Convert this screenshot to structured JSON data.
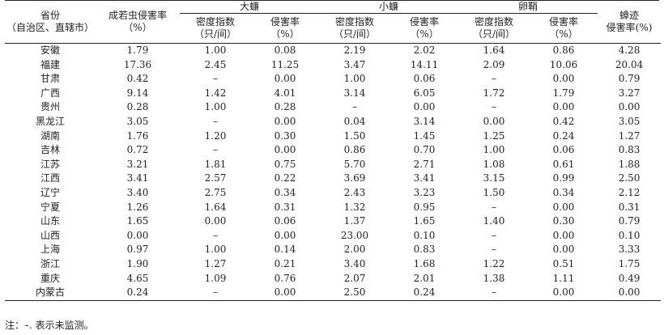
{
  "header": {
    "province": "省份\n（自治区、直辖市）",
    "province_line1": "省份",
    "province_line2": "（自治区、直辖市）",
    "adult_line1": "成若虫侵害率",
    "adult_line2": "（%）",
    "group_large": "大蠊",
    "group_small": "小蠊",
    "group_ootheca": "卵鞘",
    "density_line1": "密度指数",
    "density_line2": "（只/间）",
    "rate_line1": "侵害率",
    "rate_line2": "（%）",
    "trace_line1": "蟑迹",
    "trace_line2": "侵害率(%)"
  },
  "rows": [
    [
      "安徽",
      "1.79",
      "1.00",
      "0.08",
      "2.19",
      "2.02",
      "1.64",
      "0.86",
      "4.28"
    ],
    [
      "福建",
      "17.36",
      "2.45",
      "11.25",
      "3.47",
      "14.11",
      "2.09",
      "10.06",
      "20.04"
    ],
    [
      "甘肃",
      "0.42",
      "–",
      "0.00",
      "1.00",
      "0.06",
      "–",
      "0.00",
      "0.79"
    ],
    [
      "广西",
      "9.14",
      "1.42",
      "4.01",
      "3.14",
      "6.05",
      "1.72",
      "1.79",
      "3.27"
    ],
    [
      "贵州",
      "0.28",
      "1.00",
      "0.28",
      "–",
      "0.00",
      "–",
      "0.00",
      "0.00"
    ],
    [
      "黑龙江",
      "3.05",
      "–",
      "0.00",
      "0.04",
      "3.14",
      "0.00",
      "0.42",
      "3.05"
    ],
    [
      "湖南",
      "1.76",
      "1.20",
      "0.30",
      "1.50",
      "1.45",
      "1.25",
      "0.24",
      "1.27"
    ],
    [
      "吉林",
      "0.72",
      "–",
      "0.00",
      "0.86",
      "0.70",
      "1.00",
      "0.06",
      "0.83"
    ],
    [
      "江苏",
      "3.21",
      "1.81",
      "0.75",
      "5.70",
      "2.71",
      "1.08",
      "0.61",
      "1.88"
    ],
    [
      "江西",
      "3.41",
      "2.57",
      "0.22",
      "3.69",
      "3.41",
      "3.15",
      "0.99",
      "2.50"
    ],
    [
      "辽宁",
      "3.40",
      "2.75",
      "0.34",
      "2.43",
      "3.23",
      "1.50",
      "0.34",
      "2.12"
    ],
    [
      "宁夏",
      "1.26",
      "1.64",
      "0.31",
      "1.32",
      "0.95",
      "–",
      "0.00",
      "0.31"
    ],
    [
      "山东",
      "1.65",
      "0.00",
      "0.06",
      "1.37",
      "1.65",
      "1.40",
      "0.30",
      "0.79"
    ],
    [
      "山西",
      "0.00",
      "–",
      "0.00",
      "23.00",
      "0.10",
      "–",
      "0.00",
      "0.10"
    ],
    [
      "上海",
      "0.97",
      "1.00",
      "0.14",
      "2.00",
      "0.83",
      "–",
      "0.00",
      "3.33"
    ],
    [
      "浙江",
      "1.90",
      "1.27",
      "0.21",
      "3.40",
      "1.68",
      "1.22",
      "0.51",
      "1.75"
    ],
    [
      "重庆",
      "4.65",
      "1.09",
      "0.76",
      "2.07",
      "2.01",
      "1.38",
      "1.11",
      "0.49"
    ],
    [
      "内蒙古",
      "0.24",
      "–",
      "0.00",
      "2.50",
      "0.24",
      "–",
      "0.00",
      "0.00"
    ]
  ],
  "note": "注：–. 表示未监测。"
}
